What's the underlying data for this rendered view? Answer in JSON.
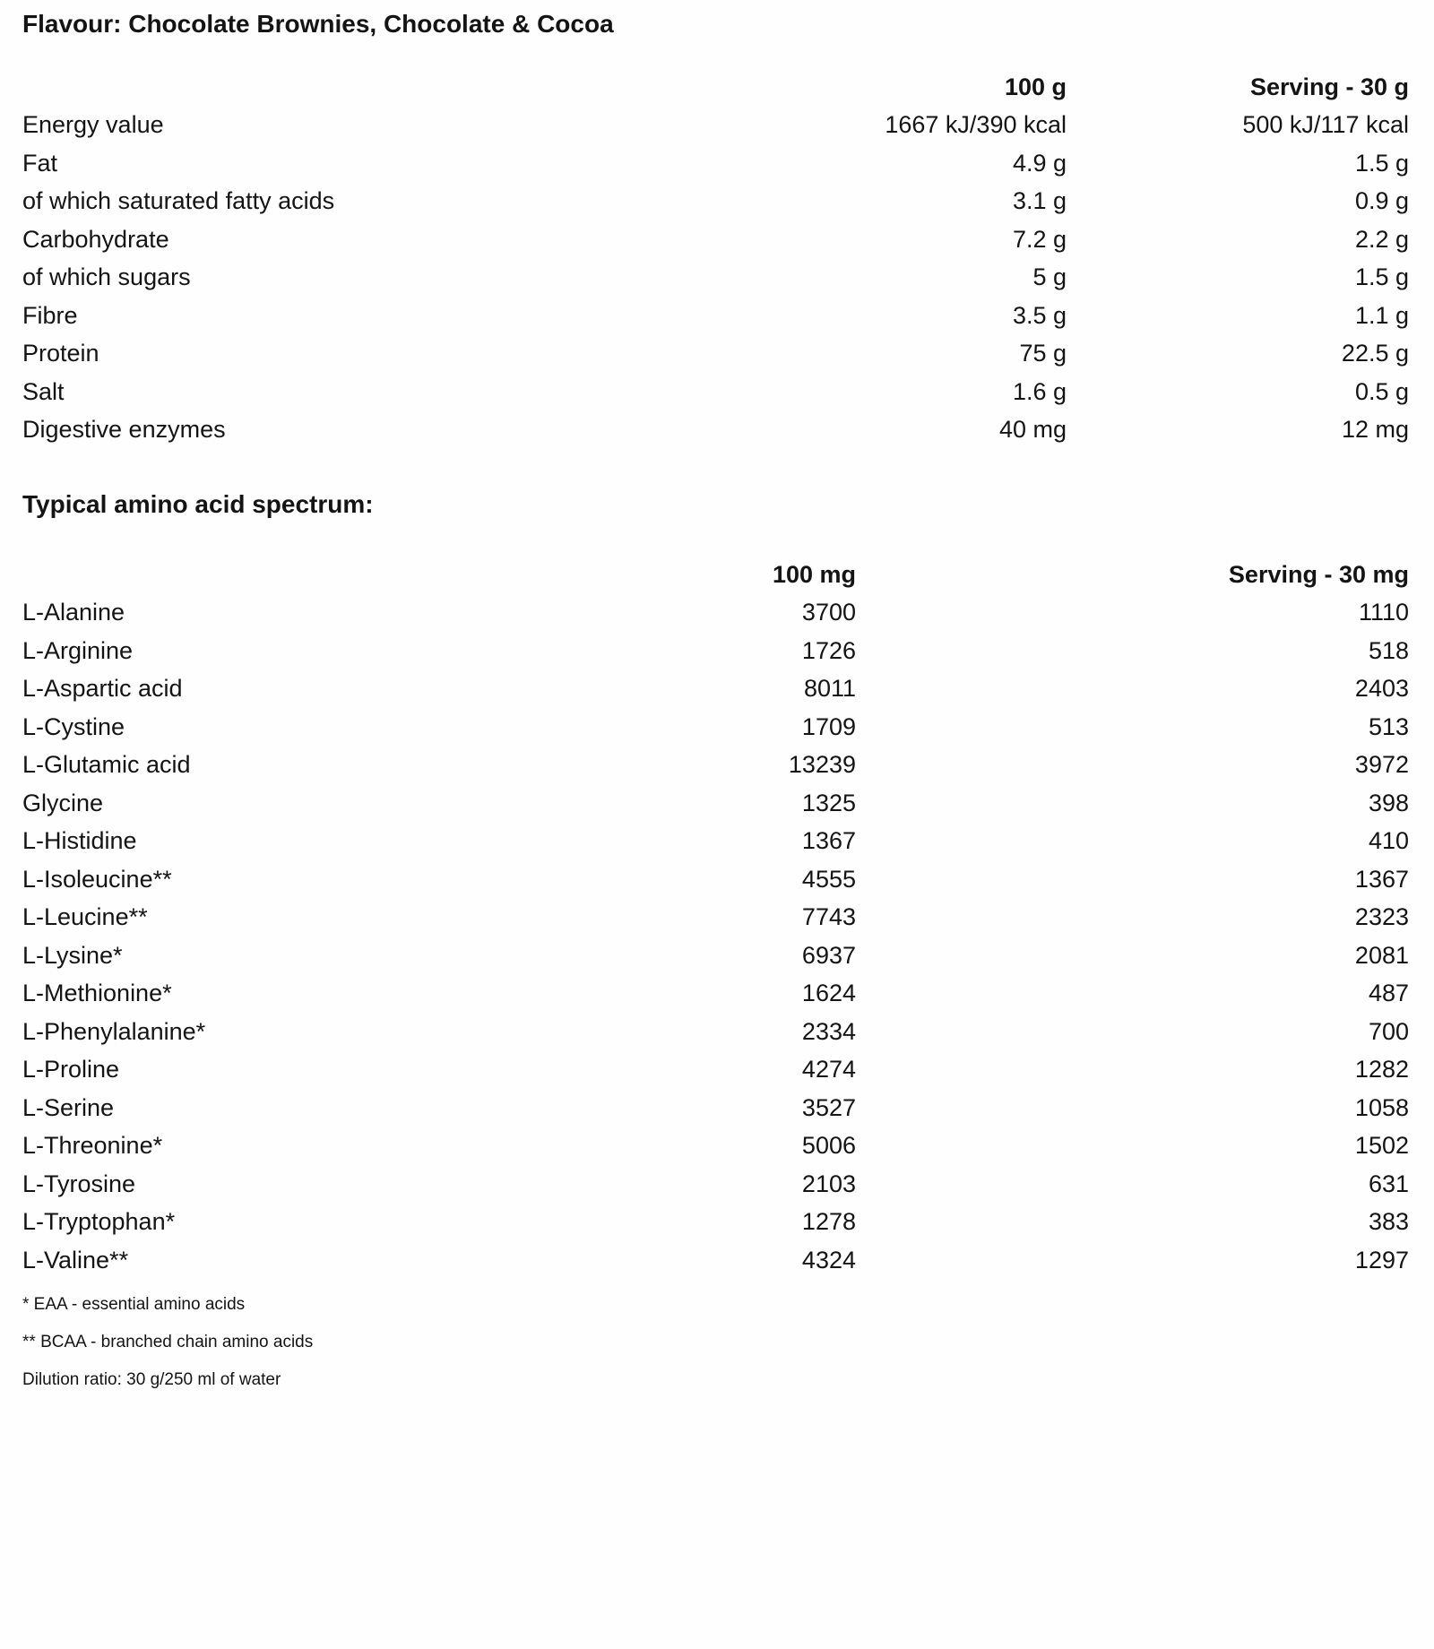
{
  "title": "Flavour: Chocolate Brownies, Chocolate & Cocoa",
  "nutrition": {
    "col1_header": "100 g",
    "col2_header": "Serving - 30 g",
    "rows": [
      {
        "label": "Energy value",
        "value_100": "1667 kJ/390 kcal",
        "value_serving": "500 kJ/117 kcal"
      },
      {
        "label": "Fat",
        "value_100": "4.9 g",
        "value_serving": "1.5 g"
      },
      {
        "label": "of which saturated fatty acids",
        "value_100": "3.1 g",
        "value_serving": "0.9 g"
      },
      {
        "label": "Carbohydrate",
        "value_100": "7.2 g",
        "value_serving": "2.2 g"
      },
      {
        "label": "of which sugars",
        "value_100": "5 g",
        "value_serving": "1.5 g"
      },
      {
        "label": "Fibre",
        "value_100": "3.5 g",
        "value_serving": "1.1 g"
      },
      {
        "label": "Protein",
        "value_100": "75 g",
        "value_serving": "22.5 g"
      },
      {
        "label": "Salt",
        "value_100": "1.6 g",
        "value_serving": "0.5 g"
      },
      {
        "label": "Digestive enzymes",
        "value_100": "40 mg",
        "value_serving": "12 mg"
      }
    ]
  },
  "amino": {
    "heading": "Typical amino acid spectrum:",
    "col1_header": "100 mg",
    "col2_header": "Serving - 30 mg",
    "rows": [
      {
        "label": "L-Alanine",
        "value_100": "3700",
        "value_serving": "1110"
      },
      {
        "label": "L-Arginine",
        "value_100": "1726",
        "value_serving": "518"
      },
      {
        "label": "L-Aspartic acid",
        "value_100": "8011",
        "value_serving": "2403"
      },
      {
        "label": "L-Cystine",
        "value_100": "1709",
        "value_serving": "513"
      },
      {
        "label": "L-Glutamic acid",
        "value_100": "13239",
        "value_serving": "3972"
      },
      {
        "label": "Glycine",
        "value_100": "1325",
        "value_serving": "398"
      },
      {
        "label": "L-Histidine",
        "value_100": "1367",
        "value_serving": "410"
      },
      {
        "label": "L-Isoleucine**",
        "value_100": "4555",
        "value_serving": "1367"
      },
      {
        "label": "L-Leucine**",
        "value_100": "7743",
        "value_serving": "2323"
      },
      {
        "label": "L-Lysine*",
        "value_100": "6937",
        "value_serving": "2081"
      },
      {
        "label": "L-Methionine*",
        "value_100": "1624",
        "value_serving": "487"
      },
      {
        "label": "L-Phenylalanine*",
        "value_100": "2334",
        "value_serving": "700"
      },
      {
        "label": "L-Proline",
        "value_100": "4274",
        "value_serving": "1282"
      },
      {
        "label": "L-Serine",
        "value_100": "3527",
        "value_serving": "1058"
      },
      {
        "label": "L-Threonine*",
        "value_100": "5006",
        "value_serving": "1502"
      },
      {
        "label": "L-Tyrosine",
        "value_100": "2103",
        "value_serving": "631"
      },
      {
        "label": "L-Tryptophan*",
        "value_100": "1278",
        "value_serving": "383"
      },
      {
        "label": "L-Valine**",
        "value_100": "4324",
        "value_serving": "1297"
      }
    ]
  },
  "footnotes": [
    "* EAA - essential amino acids",
    "** BCAA - branched chain amino acids",
    "Dilution ratio: 30 g/250 ml of water"
  ]
}
